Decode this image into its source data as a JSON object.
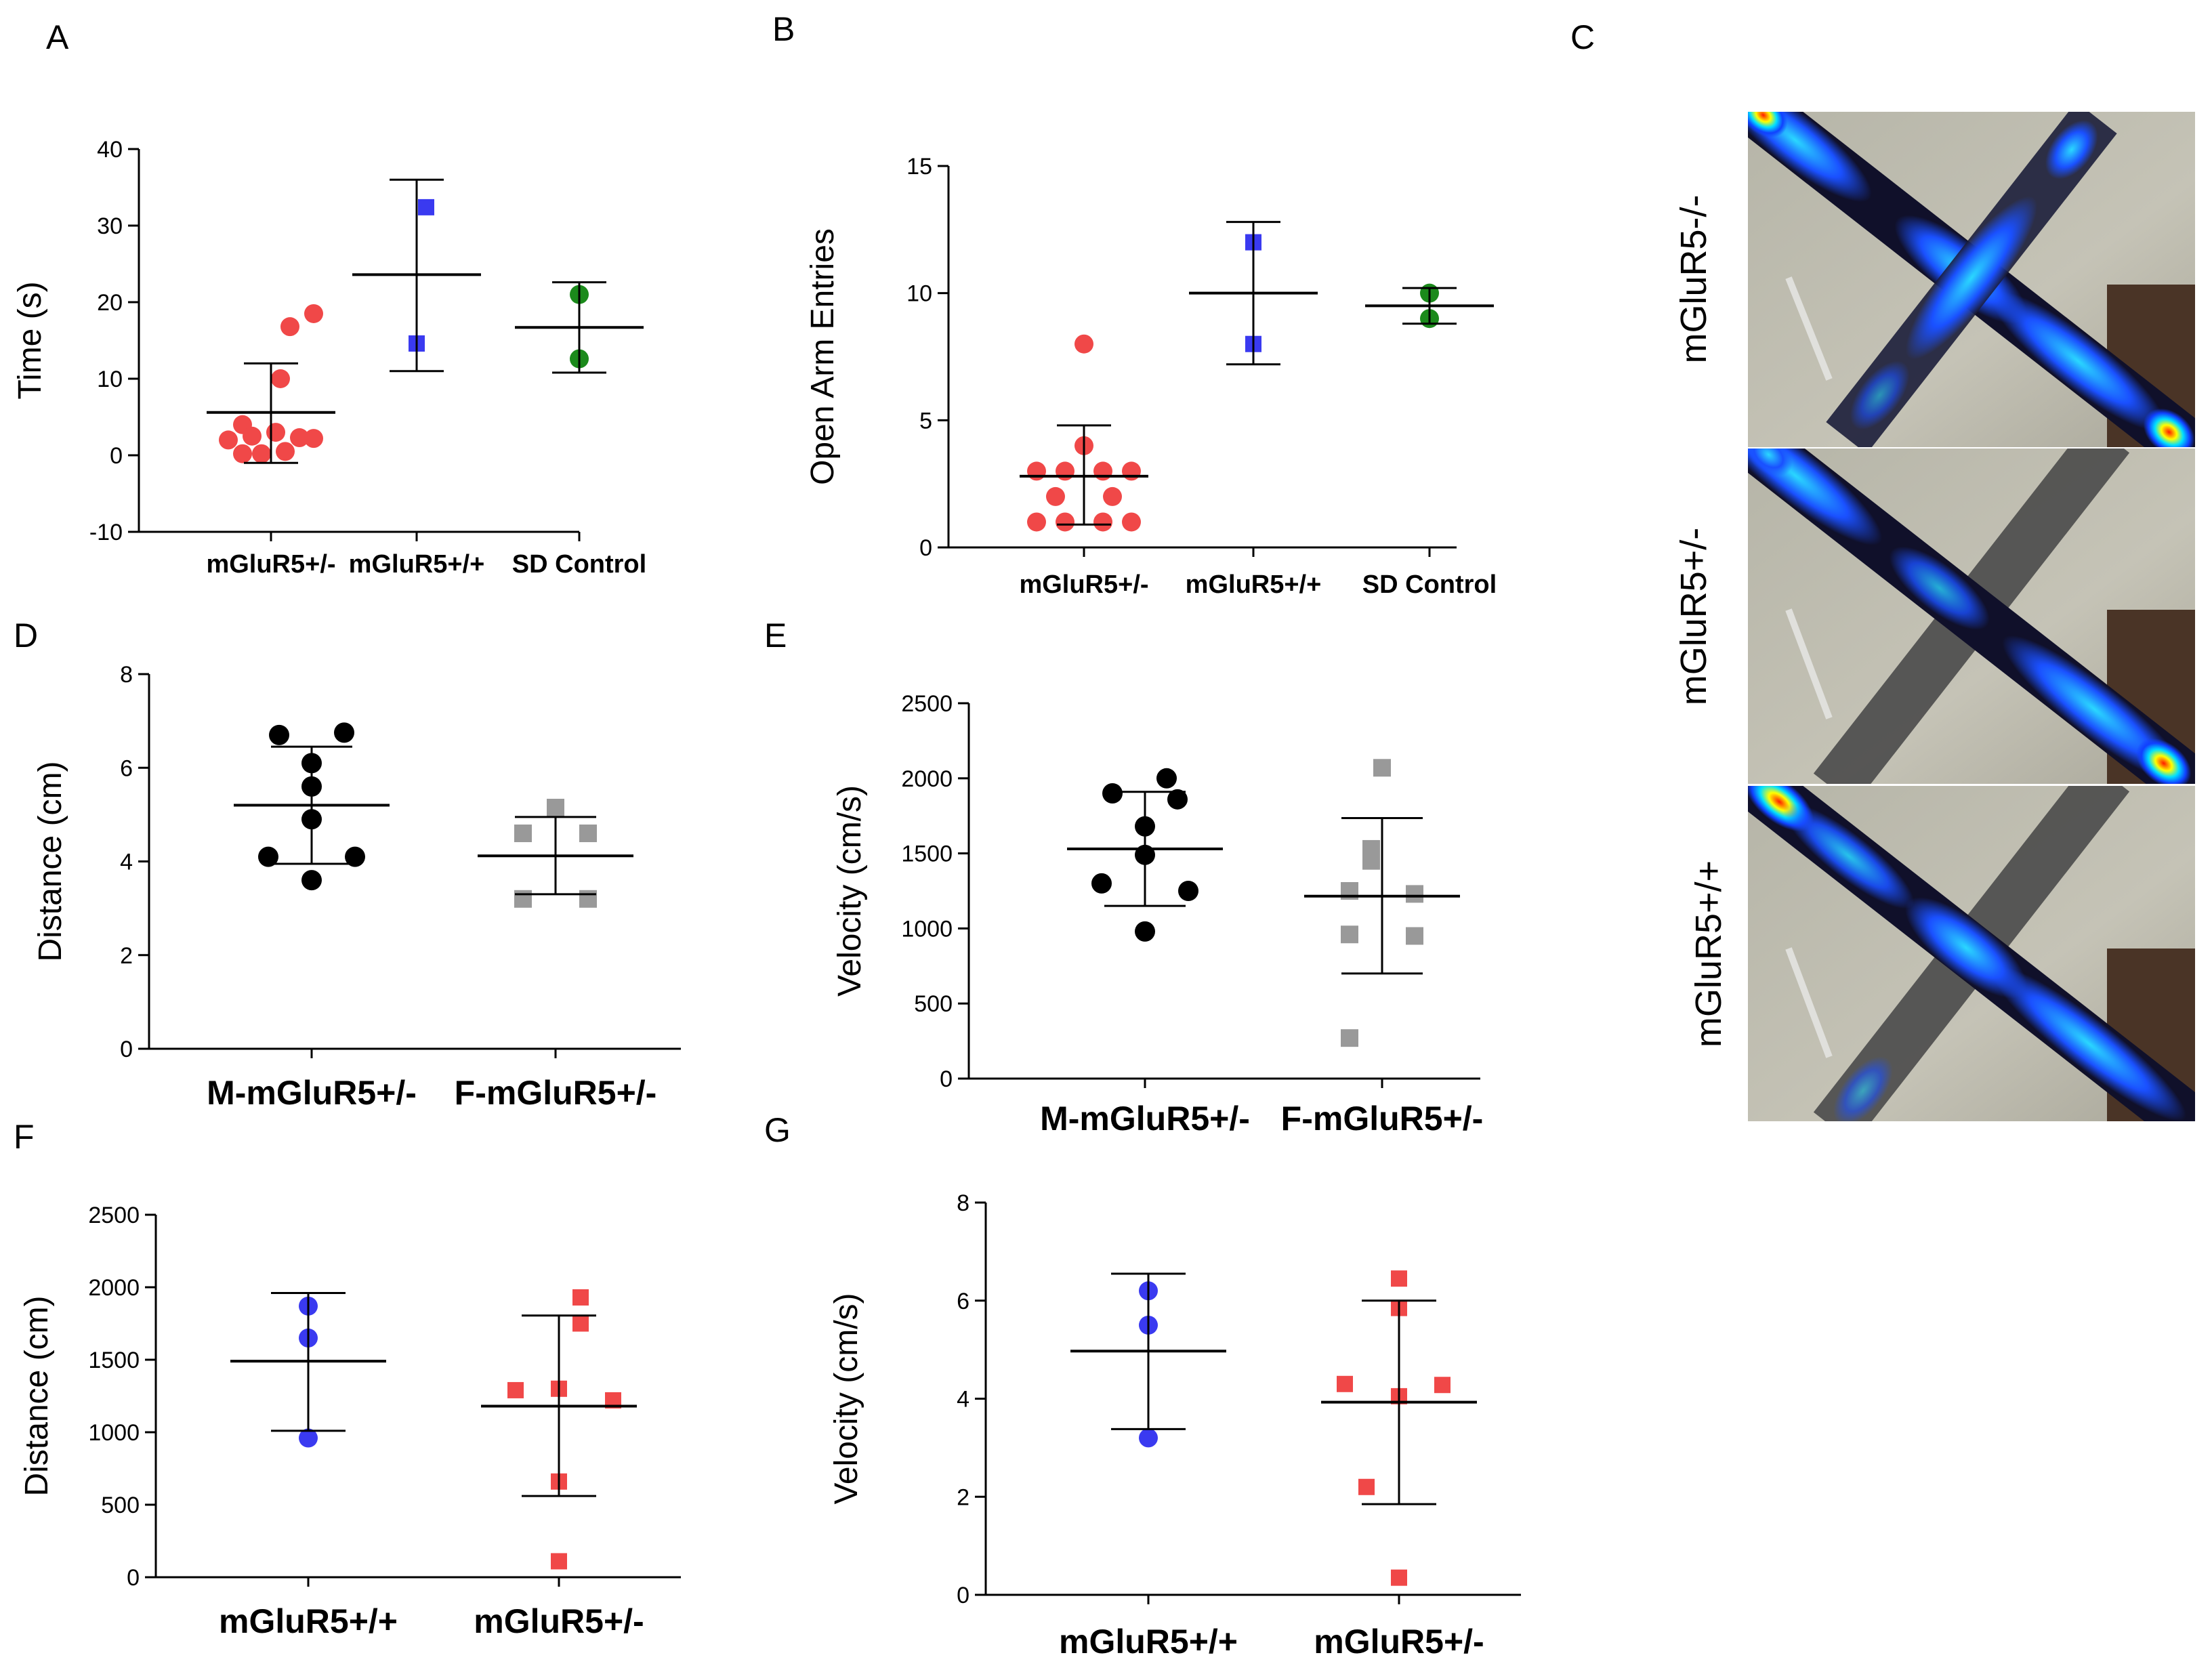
{
  "panel_letters": {
    "A": "A",
    "B": "B",
    "C": "C",
    "D": "D",
    "E": "E",
    "F": "F",
    "G": "G"
  },
  "heatmap_labels": [
    "mGluR5-/-",
    "mGluR5+/-",
    "mGluR5+/+"
  ],
  "colors": {
    "red": "#f04848",
    "blue": "#3a3af0",
    "green": "#1b8a1b",
    "black": "#000000",
    "gray": "#999999"
  },
  "chart_data": [
    {
      "id": "A",
      "type": "scatter",
      "ylabel": "Time (s)",
      "ylim": [
        -10,
        40
      ],
      "yticks": [
        -10,
        0,
        10,
        20,
        30,
        40
      ],
      "ytick_labels": [
        "-10",
        "0",
        "10",
        "20",
        "30",
        "40"
      ],
      "categories": [
        "mGluR5+/-",
        "mGluR5+/+",
        "SD Control"
      ],
      "groups": [
        {
          "name": "mGluR5+/-",
          "marker": "circle",
          "color": "#f04848",
          "mean": 5.6,
          "sd_lo": -1.0,
          "sd_hi": 12.0,
          "points": [
            [
              -0.45,
              2
            ],
            [
              -0.3,
              4
            ],
            [
              -0.2,
              2.5
            ],
            [
              -0.1,
              0.2
            ],
            [
              0.05,
              3
            ],
            [
              -0.3,
              0.2
            ],
            [
              0.15,
              0.5
            ],
            [
              0.3,
              2.3
            ],
            [
              0.45,
              2.2
            ],
            [
              0.2,
              16.8
            ],
            [
              0.45,
              18.5
            ],
            [
              0.1,
              10
            ]
          ]
        },
        {
          "name": "mGluR5+/+",
          "marker": "square",
          "color": "#3a3af0",
          "mean": 23.6,
          "sd_lo": 11.0,
          "sd_hi": 36.0,
          "points": [
            [
              0.1,
              32.4
            ],
            [
              0,
              14.6
            ]
          ]
        },
        {
          "name": "SD Control",
          "marker": "circle",
          "color": "#1b8a1b",
          "mean": 16.7,
          "sd_lo": 10.8,
          "sd_hi": 22.6,
          "points": [
            [
              0,
              21
            ],
            [
              0,
              12.6
            ]
          ]
        }
      ]
    },
    {
      "id": "B",
      "type": "scatter",
      "ylabel": "Open Arm Entries",
      "ylim": [
        0,
        15
      ],
      "yticks": [
        0,
        5,
        10,
        15
      ],
      "ytick_labels": [
        "0",
        "5",
        "10",
        "15"
      ],
      "categories": [
        "mGluR5+/-",
        "mGluR5+/+",
        "SD Control"
      ],
      "groups": [
        {
          "name": "mGluR5+/-",
          "marker": "circle",
          "color": "#f04848",
          "mean": 2.8,
          "sd_lo": 0.9,
          "sd_hi": 4.8,
          "points": [
            [
              0,
              8
            ],
            [
              0,
              4
            ],
            [
              -0.5,
              3
            ],
            [
              -0.2,
              3
            ],
            [
              0.2,
              3
            ],
            [
              0.5,
              3
            ],
            [
              -0.3,
              2
            ],
            [
              0.3,
              2
            ],
            [
              -0.5,
              1
            ],
            [
              -0.2,
              1
            ],
            [
              0.2,
              1
            ],
            [
              0.5,
              1
            ]
          ]
        },
        {
          "name": "mGluR5+/+",
          "marker": "square",
          "color": "#3a3af0",
          "mean": 10.0,
          "sd_lo": 7.2,
          "sd_hi": 12.8,
          "points": [
            [
              0,
              12
            ],
            [
              0,
              8
            ]
          ]
        },
        {
          "name": "SD Control",
          "marker": "circle",
          "color": "#1b8a1b",
          "mean": 9.5,
          "sd_lo": 8.8,
          "sd_hi": 10.2,
          "points": [
            [
              0,
              10
            ],
            [
              0,
              9
            ]
          ]
        }
      ]
    },
    {
      "id": "D",
      "type": "scatter",
      "ylabel": "Distance (cm)",
      "ylim": [
        0,
        8
      ],
      "yticks": [
        0,
        2,
        4,
        6,
        8
      ],
      "ytick_labels": [
        "0",
        "2",
        "4",
        "6",
        "8"
      ],
      "categories": [
        "M-mGluR5+/-",
        "F-mGluR5+/-"
      ],
      "groups": [
        {
          "name": "M-mGluR5+/-",
          "marker": "circle",
          "color": "#000000",
          "mean": 5.2,
          "sd_lo": 3.95,
          "sd_hi": 6.45,
          "points": [
            [
              -0.3,
              6.7
            ],
            [
              0.3,
              6.75
            ],
            [
              0,
              6.1
            ],
            [
              0,
              5.6
            ],
            [
              0,
              4.9
            ],
            [
              -0.4,
              4.1
            ],
            [
              0.4,
              4.1
            ],
            [
              0,
              3.6
            ]
          ]
        },
        {
          "name": "F-mGluR5+/-",
          "marker": "square",
          "color": "#999999",
          "mean": 4.12,
          "sd_lo": 3.3,
          "sd_hi": 4.95,
          "points": [
            [
              0,
              5.15
            ],
            [
              -0.3,
              4.6
            ],
            [
              0.3,
              4.6
            ],
            [
              -0.3,
              3.2
            ],
            [
              0.3,
              3.2
            ]
          ]
        }
      ]
    },
    {
      "id": "E",
      "type": "scatter",
      "ylabel": "Velocity (cm/s)",
      "ylim": [
        0,
        2500
      ],
      "yticks": [
        0,
        500,
        1000,
        1500,
        2000,
        2500
      ],
      "ytick_labels": [
        "0",
        "500",
        "1000",
        "1500",
        "2000",
        "2500"
      ],
      "categories": [
        "M-mGluR5+/-",
        "F-mGluR5+/-"
      ],
      "groups": [
        {
          "name": "M-mGluR5+/-",
          "marker": "circle",
          "color": "#000000",
          "mean": 1530,
          "sd_lo": 1150,
          "sd_hi": 1910,
          "points": [
            [
              -0.3,
              1900
            ],
            [
              0.2,
              2000
            ],
            [
              0.3,
              1860
            ],
            [
              0,
              1680
            ],
            [
              0,
              1490
            ],
            [
              -0.4,
              1300
            ],
            [
              0.4,
              1250
            ],
            [
              0,
              980
            ]
          ]
        },
        {
          "name": "F-mGluR5+/-",
          "marker": "square",
          "color": "#999999",
          "mean": 1215,
          "sd_lo": 700,
          "sd_hi": 1735,
          "points": [
            [
              0,
              2070
            ],
            [
              -0.1,
              1530
            ],
            [
              -0.1,
              1450
            ],
            [
              -0.3,
              1250
            ],
            [
              0.3,
              1230
            ],
            [
              -0.3,
              960
            ],
            [
              0.3,
              950
            ],
            [
              -0.3,
              270
            ]
          ]
        }
      ]
    },
    {
      "id": "F",
      "type": "scatter",
      "ylabel": "Distance (cm)",
      "ylim": [
        0,
        2500
      ],
      "yticks": [
        0,
        500,
        1000,
        1500,
        2000,
        2500
      ],
      "ytick_labels": [
        "0",
        "500",
        "1000",
        "1500",
        "2000",
        "2500"
      ],
      "categories": [
        "mGluR5+/+",
        "mGluR5+/-"
      ],
      "groups": [
        {
          "name": "mGluR5+/+",
          "marker": "circle",
          "color": "#3a3af0",
          "mean": 1490,
          "sd_lo": 1010,
          "sd_hi": 1960,
          "points": [
            [
              0,
              1870
            ],
            [
              0,
              1650
            ],
            [
              0,
              960
            ]
          ]
        },
        {
          "name": "mGluR5+/-",
          "marker": "square",
          "color": "#f04848",
          "mean": 1180,
          "sd_lo": 560,
          "sd_hi": 1805,
          "points": [
            [
              0.2,
              1930
            ],
            [
              0.2,
              1750
            ],
            [
              -0.4,
              1290
            ],
            [
              0,
              1300
            ],
            [
              0.5,
              1220
            ],
            [
              0,
              660
            ],
            [
              0,
              110
            ]
          ]
        }
      ]
    },
    {
      "id": "G",
      "type": "scatter",
      "ylabel": "Velocity (cm/s)",
      "ylim": [
        0,
        8
      ],
      "yticks": [
        0,
        2,
        4,
        6,
        8
      ],
      "ytick_labels": [
        "0",
        "2",
        "4",
        "6",
        "8"
      ],
      "categories": [
        "mGluR5+/+",
        "mGluR5+/-"
      ],
      "groups": [
        {
          "name": "mGluR5+/+",
          "marker": "circle",
          "color": "#3a3af0",
          "mean": 4.97,
          "sd_lo": 3.38,
          "sd_hi": 6.55,
          "points": [
            [
              0,
              6.2
            ],
            [
              0,
              5.5
            ],
            [
              0,
              3.2
            ]
          ]
        },
        {
          "name": "mGluR5+/-",
          "marker": "square",
          "color": "#f04848",
          "mean": 3.93,
          "sd_lo": 1.85,
          "sd_hi": 6.0,
          "points": [
            [
              0,
              6.45
            ],
            [
              0,
              5.85
            ],
            [
              -0.5,
              4.3
            ],
            [
              0.4,
              4.28
            ],
            [
              0,
              4.05
            ],
            [
              -0.3,
              2.2
            ],
            [
              0,
              0.35
            ]
          ]
        }
      ]
    }
  ]
}
